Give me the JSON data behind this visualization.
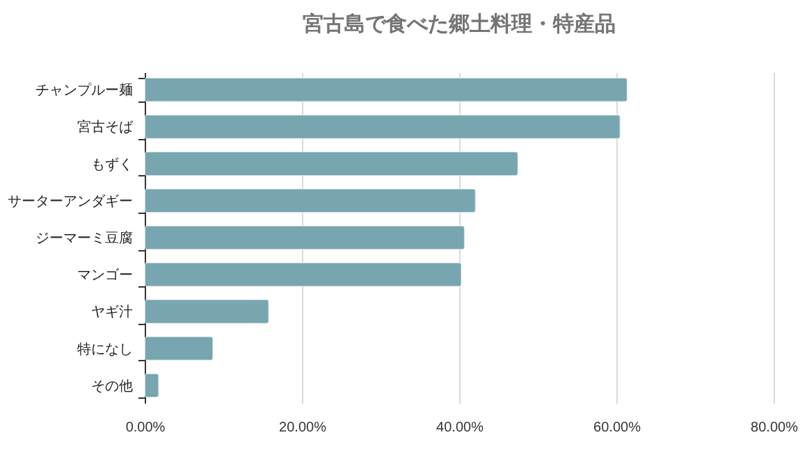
{
  "chart_data": {
    "type": "bar",
    "orientation": "horizontal",
    "title": "宮古島で食べた郷土料理・特産品",
    "categories": [
      "チャンプルー麺",
      "宮古そば",
      "もずく",
      "サーターアンダギー",
      "ジーマーミ豆腐",
      "マンゴー",
      "ヤギ汁",
      "特になし",
      "その他"
    ],
    "values": [
      61.4,
      60.5,
      47.5,
      42.1,
      40.7,
      40.3,
      15.8,
      8.7,
      1.8
    ],
    "color": "#77a5b0",
    "xlim": [
      0,
      80
    ],
    "xticks": [
      {
        "value": 0,
        "label": "0.00%"
      },
      {
        "value": 20,
        "label": "20.00%"
      },
      {
        "value": 40,
        "label": "40.00%"
      },
      {
        "value": 60,
        "label": "60.00%"
      },
      {
        "value": 80,
        "label": "80.00%"
      }
    ],
    "grid": "x"
  }
}
